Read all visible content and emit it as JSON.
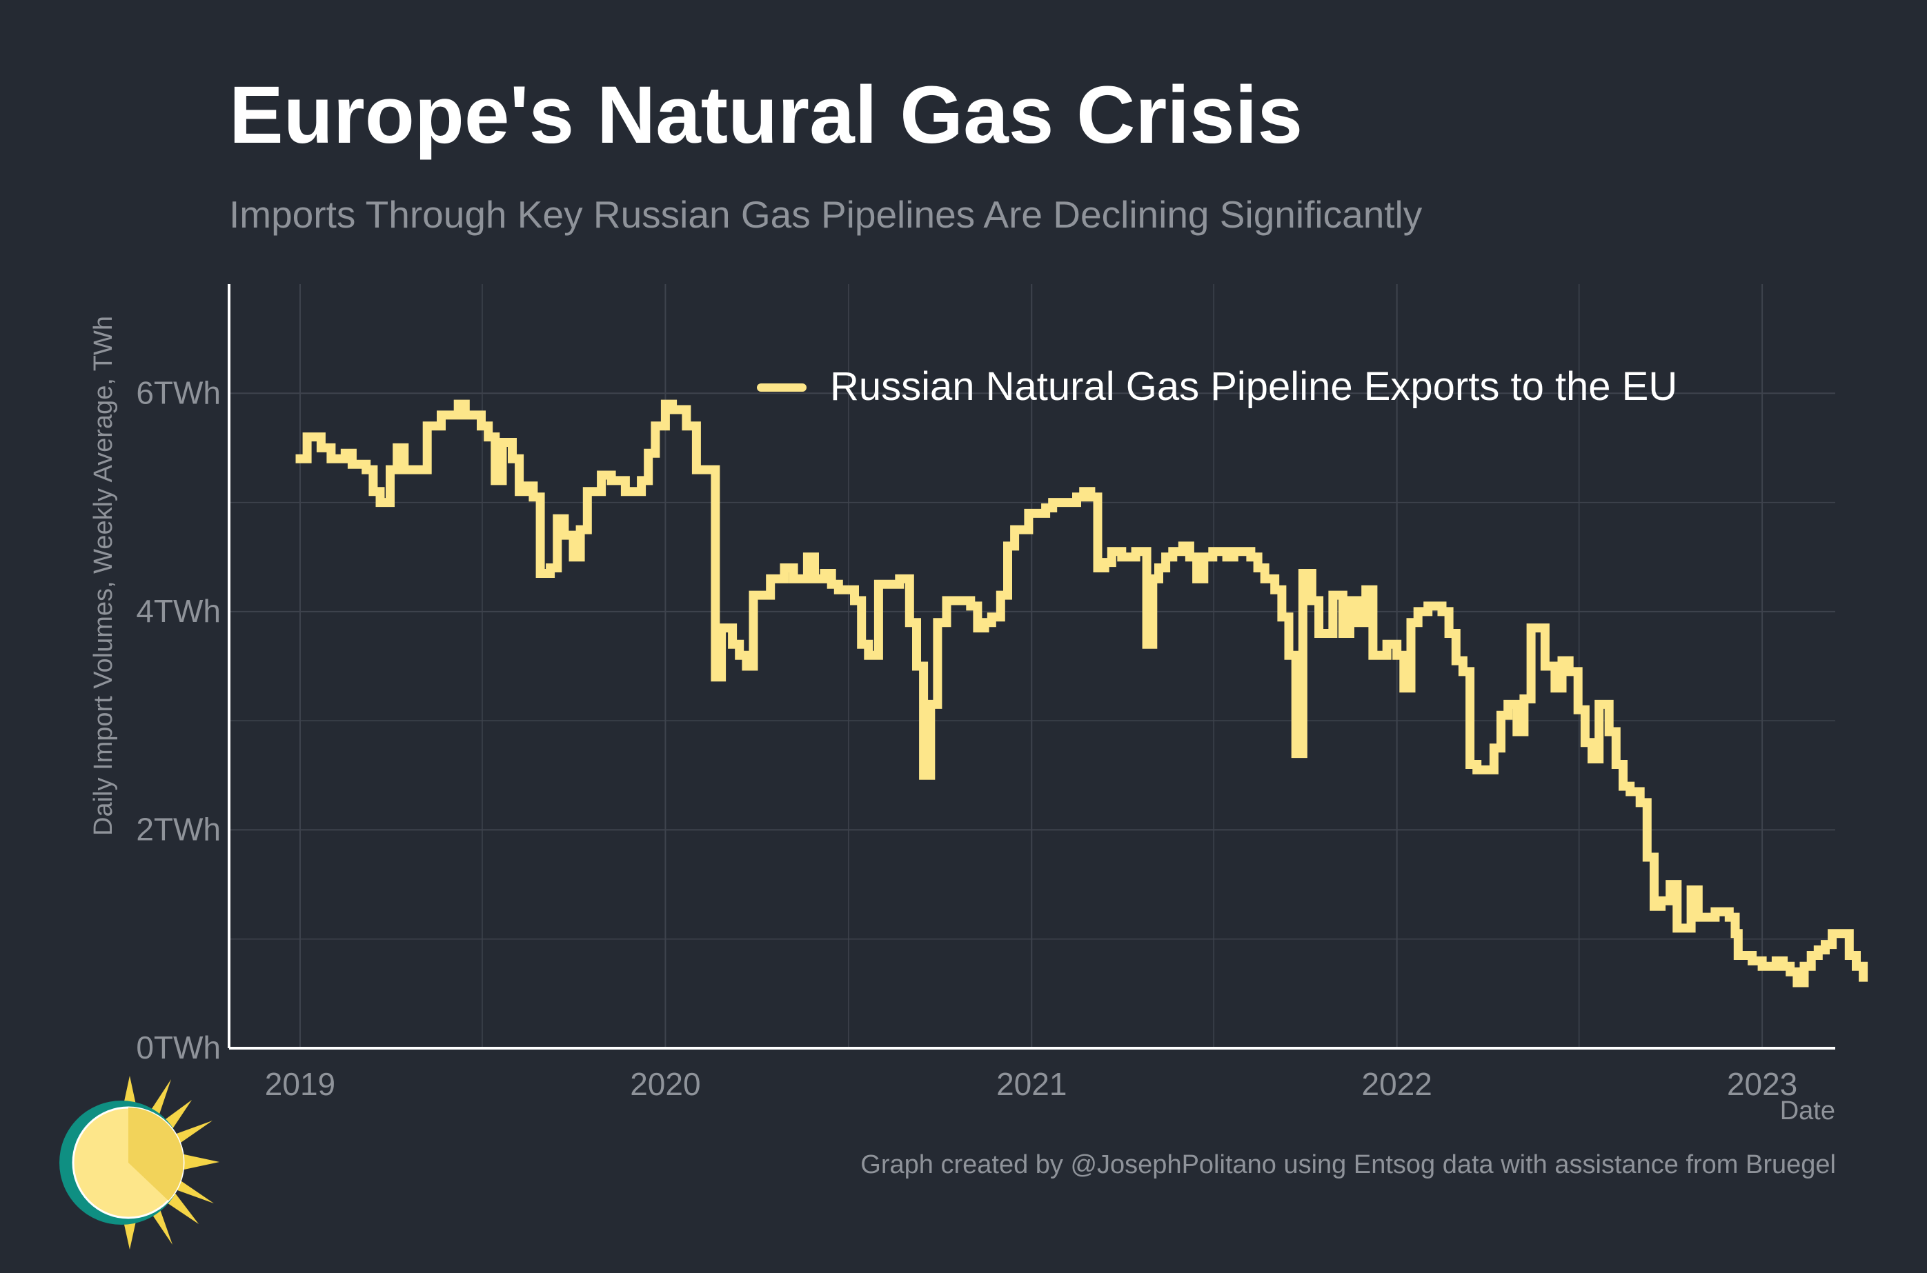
{
  "header": {
    "title": "Europe's Natural Gas Crisis",
    "subtitle": "Imports Through Key Russian Gas Pipelines Are Declining Significantly"
  },
  "footer": {
    "caption": "Graph created by @JosephPolitano using Entsog data with assistance from Bruegel"
  },
  "colors": {
    "background": "#252a33",
    "series": "#fde68a",
    "grid": "#3e434d",
    "axis": "#ffffff",
    "muted_text": "#8f939a"
  },
  "chart_data": {
    "type": "line",
    "title": "Europe's Natural Gas Crisis",
    "subtitle": "Imports Through Key Russian Gas Pipelines Are Declining Significantly",
    "xlabel": "Date",
    "ylabel": "Daily Import Volumes, Weekly Average, TWh",
    "x_ticks": [
      "2019",
      "2020",
      "2021",
      "2022",
      "2023"
    ],
    "y_ticks": [
      "0TWh",
      "2TWh",
      "4TWh",
      "6TWh"
    ],
    "y_tick_values": [
      0,
      2,
      4,
      6
    ],
    "xlim": [
      "2018-10-22",
      "2023-03-15"
    ],
    "ylim": [
      0,
      7
    ],
    "grid": true,
    "legend_position": "top-right",
    "series": [
      {
        "name": "Russian Natural Gas Pipeline Exports to the EU",
        "points": [
          [
            "2019-01-01",
            5.4
          ],
          [
            "2019-01-08",
            5.6
          ],
          [
            "2019-01-22",
            5.5
          ],
          [
            "2019-02-01",
            5.4
          ],
          [
            "2019-02-15",
            5.45
          ],
          [
            "2019-02-22",
            5.35
          ],
          [
            "2019-03-08",
            5.3
          ],
          [
            "2019-03-15",
            5.1
          ],
          [
            "2019-03-22",
            5.0
          ],
          [
            "2019-04-01",
            5.3
          ],
          [
            "2019-04-08",
            5.5
          ],
          [
            "2019-04-15",
            5.3
          ],
          [
            "2019-05-01",
            5.3
          ],
          [
            "2019-05-08",
            5.7
          ],
          [
            "2019-05-22",
            5.8
          ],
          [
            "2019-06-01",
            5.8
          ],
          [
            "2019-06-08",
            5.9
          ],
          [
            "2019-06-15",
            5.8
          ],
          [
            "2019-07-01",
            5.7
          ],
          [
            "2019-07-08",
            5.6
          ],
          [
            "2019-07-15",
            5.2
          ],
          [
            "2019-07-22",
            5.55
          ],
          [
            "2019-08-01",
            5.4
          ],
          [
            "2019-08-08",
            5.1
          ],
          [
            "2019-08-15",
            5.15
          ],
          [
            "2019-08-22",
            5.05
          ],
          [
            "2019-08-29",
            4.35
          ],
          [
            "2019-09-08",
            4.4
          ],
          [
            "2019-09-15",
            4.85
          ],
          [
            "2019-09-22",
            4.7
          ],
          [
            "2019-10-01",
            4.5
          ],
          [
            "2019-10-08",
            4.75
          ],
          [
            "2019-10-15",
            5.1
          ],
          [
            "2019-10-29",
            5.25
          ],
          [
            "2019-11-08",
            5.2
          ],
          [
            "2019-11-22",
            5.1
          ],
          [
            "2019-12-01",
            5.1
          ],
          [
            "2019-12-08",
            5.2
          ],
          [
            "2019-12-15",
            5.45
          ],
          [
            "2019-12-22",
            5.7
          ],
          [
            "2020-01-01",
            5.9
          ],
          [
            "2020-01-08",
            5.85
          ],
          [
            "2020-01-22",
            5.7
          ],
          [
            "2020-02-01",
            5.3
          ],
          [
            "2020-02-15",
            5.3
          ],
          [
            "2020-02-20",
            3.4
          ],
          [
            "2020-02-26",
            3.85
          ],
          [
            "2020-03-08",
            3.7
          ],
          [
            "2020-03-15",
            3.6
          ],
          [
            "2020-03-22",
            3.5
          ],
          [
            "2020-03-29",
            4.15
          ],
          [
            "2020-04-08",
            4.15
          ],
          [
            "2020-04-15",
            4.3
          ],
          [
            "2020-04-29",
            4.4
          ],
          [
            "2020-05-08",
            4.3
          ],
          [
            "2020-05-15",
            4.3
          ],
          [
            "2020-05-22",
            4.5
          ],
          [
            "2020-05-29",
            4.3
          ],
          [
            "2020-06-08",
            4.35
          ],
          [
            "2020-06-15",
            4.25
          ],
          [
            "2020-06-22",
            4.2
          ],
          [
            "2020-07-01",
            4.2
          ],
          [
            "2020-07-08",
            4.1
          ],
          [
            "2020-07-15",
            3.7
          ],
          [
            "2020-07-22",
            3.6
          ],
          [
            "2020-08-01",
            4.25
          ],
          [
            "2020-08-15",
            4.25
          ],
          [
            "2020-08-22",
            4.3
          ],
          [
            "2020-09-01",
            3.9
          ],
          [
            "2020-09-08",
            3.5
          ],
          [
            "2020-09-15",
            2.5
          ],
          [
            "2020-09-22",
            3.15
          ],
          [
            "2020-09-29",
            3.9
          ],
          [
            "2020-10-08",
            4.1
          ],
          [
            "2020-10-22",
            4.1
          ],
          [
            "2020-11-01",
            4.05
          ],
          [
            "2020-11-08",
            3.85
          ],
          [
            "2020-11-15",
            3.9
          ],
          [
            "2020-11-22",
            3.95
          ],
          [
            "2020-12-01",
            4.15
          ],
          [
            "2020-12-08",
            4.6
          ],
          [
            "2020-12-15",
            4.75
          ],
          [
            "2020-12-29",
            4.9
          ],
          [
            "2021-01-15",
            4.95
          ],
          [
            "2021-01-22",
            5.0
          ],
          [
            "2021-02-08",
            5.0
          ],
          [
            "2021-02-15",
            5.05
          ],
          [
            "2021-02-22",
            5.1
          ],
          [
            "2021-03-01",
            5.05
          ],
          [
            "2021-03-08",
            4.4
          ],
          [
            "2021-03-15",
            4.45
          ],
          [
            "2021-03-22",
            4.55
          ],
          [
            "2021-04-01",
            4.5
          ],
          [
            "2021-04-15",
            4.55
          ],
          [
            "2021-04-26",
            3.7
          ],
          [
            "2021-05-02",
            4.3
          ],
          [
            "2021-05-08",
            4.4
          ],
          [
            "2021-05-15",
            4.5
          ],
          [
            "2021-05-22",
            4.55
          ],
          [
            "2021-06-01",
            4.6
          ],
          [
            "2021-06-08",
            4.5
          ],
          [
            "2021-06-15",
            4.3
          ],
          [
            "2021-06-22",
            4.5
          ],
          [
            "2021-07-01",
            4.55
          ],
          [
            "2021-07-15",
            4.5
          ],
          [
            "2021-07-22",
            4.55
          ],
          [
            "2021-08-08",
            4.5
          ],
          [
            "2021-08-15",
            4.4
          ],
          [
            "2021-08-22",
            4.3
          ],
          [
            "2021-09-01",
            4.2
          ],
          [
            "2021-09-08",
            3.95
          ],
          [
            "2021-09-15",
            3.6
          ],
          [
            "2021-09-22",
            2.7
          ],
          [
            "2021-09-29",
            4.35
          ],
          [
            "2021-10-08",
            4.1
          ],
          [
            "2021-10-15",
            3.8
          ],
          [
            "2021-10-29",
            4.15
          ],
          [
            "2021-11-08",
            3.8
          ],
          [
            "2021-11-15",
            4.1
          ],
          [
            "2021-11-22",
            3.9
          ],
          [
            "2021-12-01",
            4.2
          ],
          [
            "2021-12-08",
            3.6
          ],
          [
            "2021-12-22",
            3.7
          ],
          [
            "2022-01-01",
            3.6
          ],
          [
            "2022-01-08",
            3.3
          ],
          [
            "2022-01-15",
            3.9
          ],
          [
            "2022-01-22",
            4.0
          ],
          [
            "2022-02-01",
            4.05
          ],
          [
            "2022-02-15",
            4.0
          ],
          [
            "2022-02-22",
            3.8
          ],
          [
            "2022-03-01",
            3.55
          ],
          [
            "2022-03-08",
            3.45
          ],
          [
            "2022-03-15",
            2.6
          ],
          [
            "2022-03-22",
            2.55
          ],
          [
            "2022-04-08",
            2.75
          ],
          [
            "2022-04-15",
            3.05
          ],
          [
            "2022-04-22",
            3.15
          ],
          [
            "2022-05-01",
            2.9
          ],
          [
            "2022-05-08",
            3.2
          ],
          [
            "2022-05-15",
            3.85
          ],
          [
            "2022-05-29",
            3.5
          ],
          [
            "2022-06-08",
            3.3
          ],
          [
            "2022-06-15",
            3.55
          ],
          [
            "2022-06-22",
            3.45
          ],
          [
            "2022-07-01",
            3.1
          ],
          [
            "2022-07-08",
            2.8
          ],
          [
            "2022-07-15",
            2.65
          ],
          [
            "2022-07-22",
            3.15
          ],
          [
            "2022-08-01",
            2.9
          ],
          [
            "2022-08-08",
            2.6
          ],
          [
            "2022-08-15",
            2.4
          ],
          [
            "2022-08-22",
            2.35
          ],
          [
            "2022-09-01",
            2.25
          ],
          [
            "2022-09-08",
            1.75
          ],
          [
            "2022-09-15",
            1.3
          ],
          [
            "2022-09-22",
            1.35
          ],
          [
            "2022-10-01",
            1.5
          ],
          [
            "2022-10-08",
            1.1
          ],
          [
            "2022-10-22",
            1.45
          ],
          [
            "2022-10-29",
            1.2
          ],
          [
            "2022-11-08",
            1.2
          ],
          [
            "2022-11-15",
            1.25
          ],
          [
            "2022-11-29",
            1.2
          ],
          [
            "2022-12-05",
            1.05
          ],
          [
            "2022-12-08",
            0.85
          ],
          [
            "2022-12-22",
            0.8
          ],
          [
            "2023-01-01",
            0.75
          ],
          [
            "2023-01-15",
            0.8
          ],
          [
            "2023-01-22",
            0.75
          ],
          [
            "2023-01-29",
            0.7
          ],
          [
            "2023-02-05",
            0.6
          ],
          [
            "2023-02-12",
            0.75
          ],
          [
            "2023-02-19",
            0.85
          ],
          [
            "2023-02-26",
            0.9
          ],
          [
            "2023-03-05",
            0.95
          ],
          [
            "2023-03-12",
            1.05
          ],
          [
            "2023-03-22",
            1.05
          ],
          [
            "2023-03-29",
            0.85
          ],
          [
            "2023-04-05",
            0.75
          ],
          [
            "2023-04-12",
            0.65
          ]
        ]
      }
    ]
  }
}
